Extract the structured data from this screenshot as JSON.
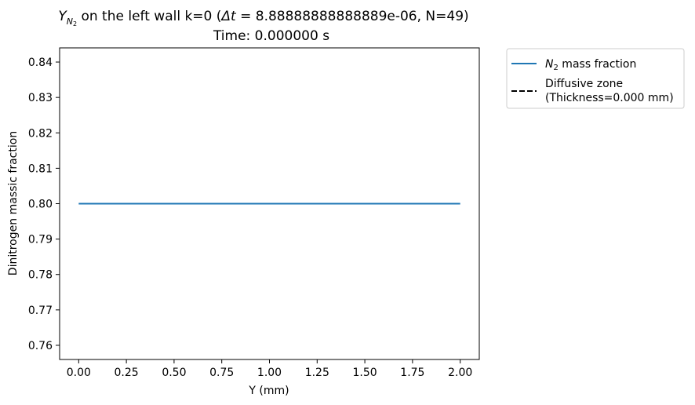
{
  "chart_data": {
    "type": "line",
    "title": {
      "line1_symbol": "Y",
      "line1_symbol_sub": "N",
      "line1_symbol_subsub": "2",
      "line1_prefix": " on the left wall k=0 (",
      "line1_delta": "Δt",
      "line1_rest": " = 8.88888888888889e-06, N=49)",
      "line2": "Time: 0.000000 s"
    },
    "xlabel": "Y (mm)",
    "ylabel": "Dinitrogen massic fraction",
    "xlim": [
      -0.1,
      2.1
    ],
    "ylim": [
      0.756,
      0.844
    ],
    "x_ticks": [
      0.0,
      0.25,
      0.5,
      0.75,
      1.0,
      1.25,
      1.5,
      1.75,
      2.0
    ],
    "x_tick_labels": [
      "0.00",
      "0.25",
      "0.50",
      "0.75",
      "1.00",
      "1.25",
      "1.50",
      "1.75",
      "2.00"
    ],
    "y_ticks": [
      0.76,
      0.77,
      0.78,
      0.79,
      0.8,
      0.81,
      0.82,
      0.83,
      0.84
    ],
    "y_tick_labels": [
      "0.76",
      "0.77",
      "0.78",
      "0.79",
      "0.80",
      "0.81",
      "0.82",
      "0.83",
      "0.84"
    ],
    "grid": false,
    "legend_placement": "outside-upper-right",
    "series": [
      {
        "name_symbol": "N",
        "name_sub": "2",
        "name_rest": " mass fraction",
        "color": "#1f77b4",
        "style": "solid",
        "x": [
          0.0,
          2.0
        ],
        "y": [
          0.8,
          0.8
        ]
      },
      {
        "name_line1": "Diffusive zone",
        "name_line2": "(Thickness=0.000 mm)",
        "color": "#000000",
        "style": "dashed",
        "x": [],
        "y": []
      }
    ]
  }
}
